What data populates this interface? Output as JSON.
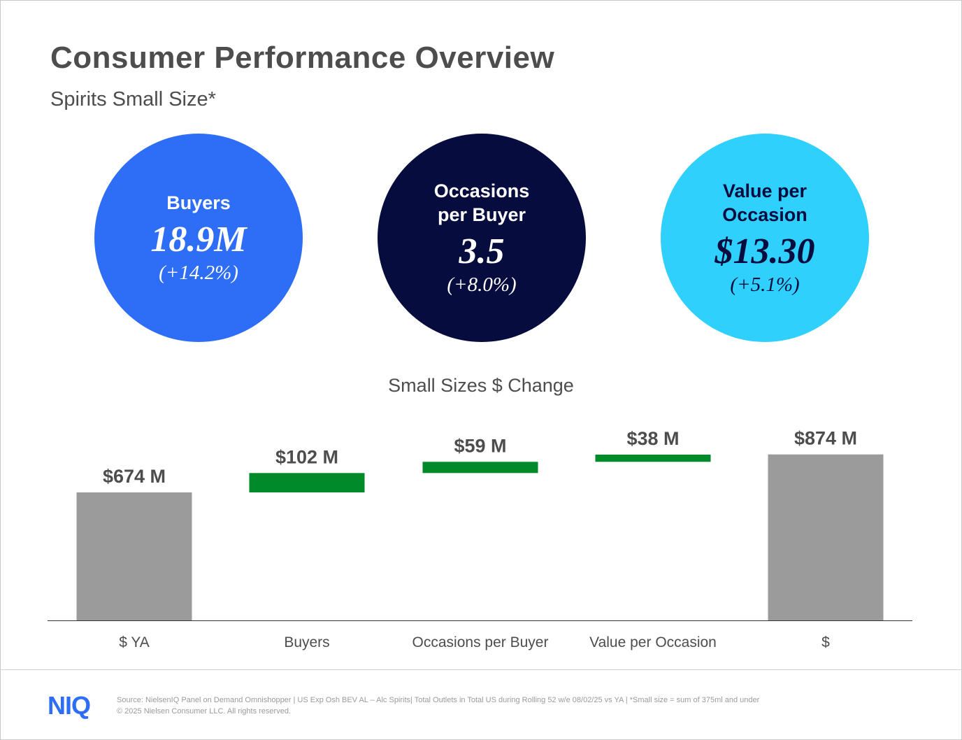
{
  "header": {
    "title": "Consumer Performance Overview",
    "subtitle": "Spirits Small Size*"
  },
  "kpis": [
    {
      "label_lines": [
        "Buyers"
      ],
      "value": "18.9M",
      "change": "(+14.2%)",
      "bg": "#2e6ef7",
      "fg": "#ffffff"
    },
    {
      "label_lines": [
        "Occasions",
        "per Buyer"
      ],
      "value": "3.5",
      "change": "(+8.0%)",
      "bg": "#070c3e",
      "fg": "#ffffff"
    },
    {
      "label_lines": [
        "Value per",
        "Occasion"
      ],
      "value": "$13.30",
      "change": "(+5.1%)",
      "bg": "#30d0fd",
      "fg": "#070c3e"
    }
  ],
  "chart_data": {
    "type": "waterfall",
    "title": "Small Sizes $ Change",
    "categories": [
      "$ YA",
      "Buyers",
      "Occasions per Buyer",
      "Value per Occasion",
      "$"
    ],
    "values": [
      674,
      102,
      59,
      38,
      874
    ],
    "kinds": [
      "total",
      "delta",
      "delta",
      "delta",
      "total"
    ],
    "data_labels": [
      "$674 M",
      "$102 M",
      "$59 M",
      "$38 M",
      "$874 M"
    ],
    "colors": {
      "total": "#9b9b9b",
      "increase": "#008a2a"
    },
    "grid": false,
    "legend": false
  },
  "footer": {
    "logo": "NIQ",
    "source": "Source: NielsenIQ Panel on Demand Omnishopper  | US Exp Osh BEV AL – Alc Spirits| Total Outlets in Total US during Rolling 52 w/e 08/02/25 vs YA  | *Small size = sum of 375ml and under",
    "copyright": "© 2025 Nielsen Consumer LLC. All rights reserved."
  }
}
